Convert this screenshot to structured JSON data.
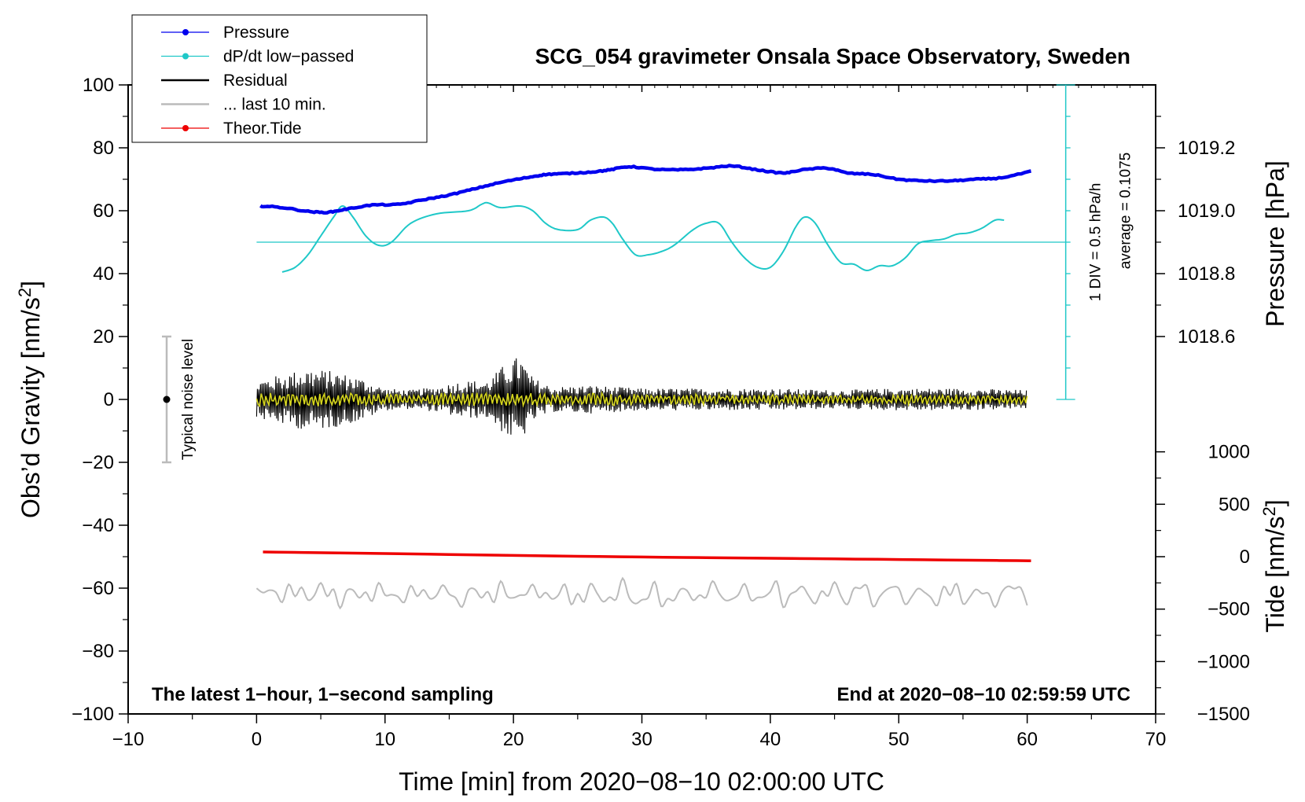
{
  "chart_data": {
    "type": "line",
    "title": "SCG_054 gravimeter Onsala Space Observatory, Sweden",
    "xlabel": "Time [min] from 2020−08−10 02:00:00 UTC",
    "ylabel_left": "Obs’d Gravity [nm/s",
    "ylabel_left_sup": "2",
    "ylabel_left_end": "]",
    "ylabel_pressure": "Pressure [hPa]",
    "ylabel_tide": "Tide [nm/s",
    "ylabel_tide_sup": "2",
    "ylabel_tide_end": "]",
    "xlim": [
      -10,
      70
    ],
    "ylim": [
      -100,
      100
    ],
    "x_ticks": [
      -10,
      0,
      10,
      20,
      30,
      40,
      50,
      60,
      70
    ],
    "x_tick_labels": [
      "−10",
      "0",
      "10",
      "20",
      "30",
      "40",
      "50",
      "60",
      "70"
    ],
    "y_ticks": [
      100,
      80,
      60,
      40,
      20,
      0,
      -20,
      -40,
      -60,
      -80,
      -100
    ],
    "y_tick_labels": [
      "100",
      "80",
      "60",
      "40",
      "20",
      "0",
      "−20",
      "−40",
      "−60",
      "−80",
      "−100"
    ],
    "pressure_axis": {
      "ticks": [
        1019.2,
        1019.0,
        1018.8,
        1018.6
      ],
      "tick_labels": [
        "1019.2",
        "1019.0",
        "1018.8",
        "1018.6"
      ],
      "value_at_gravity_80": 1019.2,
      "hpa_per_20_gravity": 0.2
    },
    "tide_axis": {
      "ticks": [
        1000,
        500,
        0,
        -500,
        -1000,
        -1500
      ],
      "tick_labels": [
        "1000",
        "500",
        "0",
        "−500",
        "−1000",
        "−1500"
      ],
      "scale_gravity_per_500": 16.67,
      "gravity_at_zero": -50
    },
    "dpdt_scale": {
      "label": "1 DIV = 0.5 hPa/h",
      "average_label": "average = 0.1075",
      "x": 63,
      "from": 0,
      "to": 100,
      "div_step": 10,
      "average_line_y": 50
    },
    "legend": [
      {
        "name": "Pressure",
        "color": "#0000ee",
        "marker": true
      },
      {
        "name": "dP/dt low−passed",
        "color": "#1fc8c8",
        "marker": true
      },
      {
        "name": "Residual",
        "color": "#000000",
        "marker": false
      },
      {
        "name": "... last 10 min.",
        "color": "#bbbbbb",
        "marker": false
      },
      {
        "name": "Theor.Tide",
        "color": "#ee0000",
        "marker": true
      }
    ],
    "noise_bar": {
      "x": -7,
      "center": 0,
      "low": -20,
      "high": 20,
      "label": "Typical noise level"
    },
    "footer_left": "The latest 1−hour, 1−second sampling",
    "footer_right": "End at 2020−08−10 02:59:59 UTC",
    "series": [
      {
        "name": "Pressure",
        "color": "#0000ee",
        "x": [
          0.3,
          2,
          4,
          5.5,
          7,
          9,
          11,
          13,
          15,
          17,
          19,
          21,
          22.5,
          24,
          26,
          27.5,
          29,
          31,
          33,
          35,
          37,
          39,
          41,
          42.5,
          44.5,
          46,
          48,
          50,
          52,
          54,
          56,
          58,
          60.3
        ],
        "values": [
          61.5,
          61,
          59.8,
          59.5,
          60.5,
          61.8,
          62,
          63.5,
          65,
          67,
          69,
          70.5,
          71.5,
          71.8,
          72.3,
          73,
          74,
          73.2,
          73,
          73.5,
          74.2,
          73,
          72,
          73,
          73.5,
          72,
          71.5,
          70,
          69.5,
          69.5,
          70,
          70.5,
          72.5
        ]
      },
      {
        "name": "dP/dt low−passed",
        "color": "#1fc8c8",
        "x": [
          2,
          3,
          4,
          5,
          6,
          6.7,
          7.5,
          8.5,
          9.5,
          10.5,
          12,
          14,
          16.5,
          17.5,
          18,
          19,
          20.5,
          21.5,
          22.5,
          23.5,
          25,
          26,
          27,
          27.7,
          28.5,
          29.5,
          30.5,
          31.5,
          32.5,
          34,
          35,
          36,
          37,
          38,
          39,
          40,
          41,
          42,
          42.7,
          43.5,
          44.5,
          45.5,
          46.5,
          47.5,
          48.5,
          49.5,
          50.5,
          51.5,
          52.5,
          53.5,
          54.5,
          55.5,
          56.5,
          57.5,
          58.2
        ],
        "values": [
          40.5,
          42,
          46,
          52,
          58,
          61.5,
          58,
          52,
          49,
          50,
          56,
          59,
          60,
          62,
          62.5,
          61,
          61.5,
          60,
          56,
          54,
          54,
          57,
          58,
          56,
          51,
          46,
          46,
          47,
          49,
          54,
          56,
          56,
          50,
          45,
          42,
          42,
          47,
          55,
          58,
          56,
          49,
          43.5,
          43,
          41,
          42.5,
          42.5,
          45,
          49.5,
          50.5,
          51,
          52.5,
          53,
          54.5,
          57,
          57
        ]
      },
      {
        "name": "Theor.Tide",
        "color": "#ee0000",
        "x": [
          0.5,
          10,
          20,
          30,
          40,
          50,
          60.3
        ],
        "values": [
          -48.5,
          -49.0,
          -49.6,
          -50.1,
          -50.5,
          -50.9,
          -51.3
        ]
      }
    ],
    "residual": {
      "name": "Residual",
      "color": "#000000",
      "x_start": 0,
      "x_end": 60,
      "amplitude_envelope": [
        [
          0,
          6
        ],
        [
          2,
          8
        ],
        [
          4,
          10
        ],
        [
          6,
          9
        ],
        [
          8,
          7
        ],
        [
          10,
          3.5
        ],
        [
          12,
          3
        ],
        [
          14,
          4
        ],
        [
          16,
          6
        ],
        [
          18,
          6
        ],
        [
          19.5,
          12
        ],
        [
          20.5,
          14
        ],
        [
          21.5,
          7
        ],
        [
          23,
          4
        ],
        [
          26,
          4.5
        ],
        [
          30,
          3.5
        ],
        [
          35,
          3.5
        ],
        [
          40,
          3.5
        ],
        [
          45,
          3
        ],
        [
          50,
          3.5
        ],
        [
          55,
          3.5
        ],
        [
          60,
          3
        ]
      ],
      "smoothed_color": "#d6d61e",
      "smoothed_amplitude": 2.2
    },
    "last10": {
      "name": "... last 10 min.",
      "color": "#bbbbbb",
      "x_start": 0,
      "x_end": 60,
      "center": -62,
      "amplitude": 3.5
    }
  }
}
